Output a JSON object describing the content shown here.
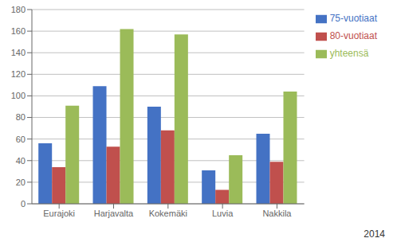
{
  "chart_data": {
    "type": "bar",
    "categories": [
      "Eurajoki",
      "Harjavalta",
      "Kokemäki",
      "Luvia",
      "Nakkila"
    ],
    "series": [
      {
        "name": "75-vuotiaat",
        "color": "#4472C4",
        "values": [
          56,
          109,
          90,
          31,
          65
        ]
      },
      {
        "name": "80-vuotiaat",
        "color": "#C0504D",
        "values": [
          34,
          53,
          68,
          13,
          39
        ]
      },
      {
        "name": "yhteensä",
        "color": "#9BBB59",
        "values": [
          91,
          162,
          157,
          45,
          104
        ]
      }
    ],
    "ylim": [
      0,
      180
    ],
    "yticks": [
      0,
      20,
      40,
      60,
      80,
      100,
      120,
      140,
      160,
      180
    ],
    "grid": true,
    "legend": "right",
    "annotations": [
      "2014"
    ]
  }
}
